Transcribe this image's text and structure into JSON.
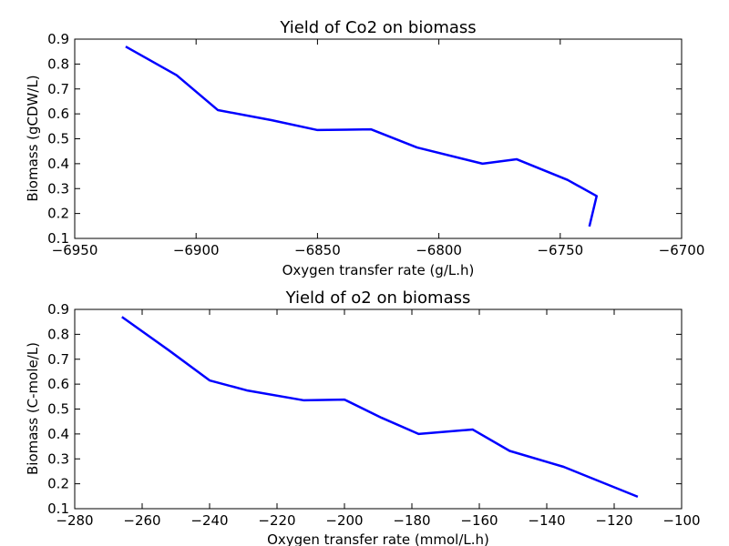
{
  "chart_data": [
    {
      "type": "line",
      "title": "Yield of Co2 on biomass",
      "xlabel": "Oxygen transfer rate (g/L.h)",
      "ylabel": "Biomass (gCDW/L)",
      "xlim": [
        -6950,
        -6700
      ],
      "ylim": [
        0.1,
        0.9
      ],
      "xticks": [
        -6950,
        -6900,
        -6850,
        -6800,
        -6750,
        -6700
      ],
      "yticks": [
        0.1,
        0.2,
        0.3,
        0.4,
        0.5,
        0.6,
        0.7,
        0.8,
        0.9
      ],
      "xtick_labels": [
        "−6950",
        "−6900",
        "−6850",
        "−6800",
        "−6750",
        "−6700"
      ],
      "ytick_labels": [
        "0.1",
        "0.2",
        "0.3",
        "0.4",
        "0.5",
        "0.6",
        "0.7",
        "0.8",
        "0.9"
      ],
      "grid": false,
      "series": [
        {
          "color": "#0000ff",
          "x": [
            -6929,
            -6908,
            -6891,
            -6869,
            -6850,
            -6828,
            -6809,
            -6782,
            -6768,
            -6747,
            -6735,
            -6738
          ],
          "y": [
            0.87,
            0.755,
            0.615,
            0.575,
            0.535,
            0.538,
            0.465,
            0.4,
            0.418,
            0.335,
            0.27,
            0.148
          ]
        }
      ]
    },
    {
      "type": "line",
      "title": "Yield of o2 on biomass",
      "xlabel": "Oxygen transfer rate (mmol/L.h)",
      "ylabel": "Biomass (C-mole/L)",
      "xlim": [
        -280,
        -100
      ],
      "ylim": [
        0.1,
        0.9
      ],
      "xticks": [
        -280,
        -260,
        -240,
        -220,
        -200,
        -180,
        -160,
        -140,
        -120,
        -100
      ],
      "yticks": [
        0.1,
        0.2,
        0.3,
        0.4,
        0.5,
        0.6,
        0.7,
        0.8,
        0.9
      ],
      "xtick_labels": [
        "−280",
        "−260",
        "−240",
        "−220",
        "−200",
        "−180",
        "−160",
        "−140",
        "−120",
        "−100"
      ],
      "ytick_labels": [
        "0.1",
        "0.2",
        "0.3",
        "0.4",
        "0.5",
        "0.6",
        "0.7",
        "0.8",
        "0.9"
      ],
      "grid": false,
      "series": [
        {
          "color": "#0000ff",
          "x": [
            -266,
            -252,
            -240,
            -229,
            -212,
            -200,
            -189,
            -178,
            -162,
            -151,
            -135,
            -113
          ],
          "y": [
            0.87,
            0.735,
            0.615,
            0.575,
            0.535,
            0.538,
            0.465,
            0.4,
            0.418,
            0.332,
            0.268,
            0.148
          ]
        }
      ]
    }
  ]
}
